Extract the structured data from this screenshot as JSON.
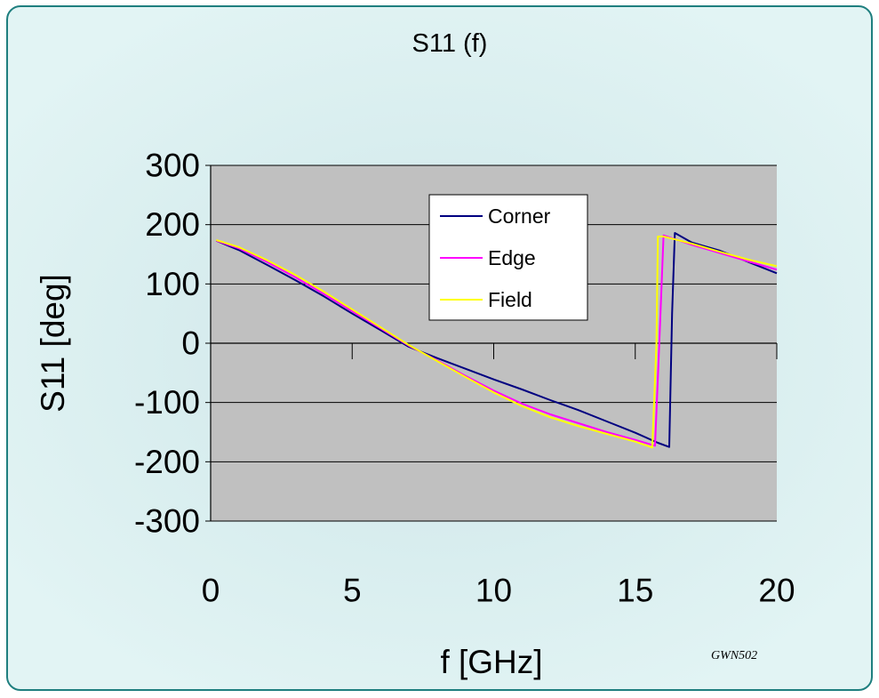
{
  "chart_data": {
    "type": "line",
    "title": "S11 (f)",
    "xlabel": "f [GHz]",
    "ylabel": "S11 [deg]",
    "xlim": [
      0,
      20
    ],
    "ylim": [
      -300,
      300
    ],
    "x_ticks": [
      "0",
      "5",
      "10",
      "15",
      "20"
    ],
    "y_ticks": [
      "300",
      "200",
      "100",
      "0",
      "-100",
      "-200",
      "-300"
    ],
    "grid": "horizontal",
    "legend_position": "top-center",
    "plot_background": "#c0c0c0",
    "series": [
      {
        "name": "Corner",
        "color": "#000080",
        "x": [
          0.2,
          1,
          2,
          3,
          4,
          5,
          6,
          7,
          8,
          9,
          10,
          11,
          12,
          13,
          14,
          15,
          15.8,
          16.2,
          16.3,
          16.4,
          17,
          18,
          19,
          20
        ],
        "y": [
          173,
          157,
          132,
          106,
          79,
          50,
          22,
          -6,
          -25,
          -43,
          -61,
          -78,
          -96,
          -113,
          -132,
          -151,
          -168,
          -175,
          50,
          186,
          170,
          156,
          137,
          118
        ]
      },
      {
        "name": "Edge",
        "color": "#ff00ff",
        "x": [
          0.2,
          1,
          2,
          3,
          4,
          5,
          6,
          7,
          8,
          9,
          10,
          11,
          12,
          13,
          14,
          15,
          15.7,
          15.85,
          16,
          17,
          18,
          19,
          20
        ],
        "y": [
          173,
          160,
          137,
          111,
          83,
          54,
          25,
          -4,
          -29,
          -55,
          -80,
          -102,
          -120,
          -135,
          -150,
          -163,
          -173,
          0,
          182,
          166,
          152,
          138,
          124
        ]
      },
      {
        "name": "Field",
        "color": "#ffff00",
        "x": [
          0.2,
          1,
          2,
          3,
          4,
          5,
          6,
          7,
          8,
          9,
          10,
          11,
          12,
          13,
          14,
          15,
          15.6,
          15.75,
          15.8,
          16,
          17,
          18,
          19,
          20
        ],
        "y": [
          174,
          162,
          140,
          115,
          87,
          57,
          27,
          -3,
          -30,
          -57,
          -83,
          -106,
          -125,
          -140,
          -153,
          -166,
          -176,
          0,
          180,
          180,
          168,
          154,
          141,
          130
        ]
      }
    ]
  },
  "credit": "GWN502"
}
